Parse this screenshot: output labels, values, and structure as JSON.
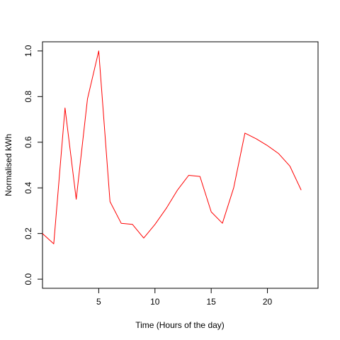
{
  "chart_data": {
    "type": "line",
    "title": "",
    "xlabel": "Time (Hours of the day)",
    "ylabel": "Normalised kWh",
    "xlim": [
      0,
      24.5
    ],
    "ylim": [
      -0.04,
      1.04
    ],
    "grid": false,
    "legend": "none",
    "x_ticks": [
      5,
      10,
      15,
      20
    ],
    "x_tick_labels": [
      "5",
      "10",
      "15",
      "20"
    ],
    "y_ticks": [
      0.0,
      0.2,
      0.4,
      0.6,
      0.8,
      1.0
    ],
    "y_tick_labels": [
      "0.0",
      "0.2",
      "0.4",
      "0.6",
      "0.8",
      "1.0"
    ],
    "series": [
      {
        "color": "#ff0000",
        "x": [
          0,
          1,
          2,
          3,
          4,
          5,
          6,
          7,
          8,
          9,
          10,
          11,
          12,
          13,
          14,
          15,
          16,
          17,
          18,
          19,
          20,
          21,
          22,
          23
        ],
        "y": [
          0.2,
          0.155,
          0.75,
          0.35,
          0.79,
          1.0,
          0.34,
          0.245,
          0.24,
          0.18,
          0.24,
          0.31,
          0.39,
          0.455,
          0.45,
          0.295,
          0.245,
          0.4,
          0.64,
          0.615,
          0.585,
          0.55,
          0.495,
          0.39
        ]
      }
    ]
  }
}
